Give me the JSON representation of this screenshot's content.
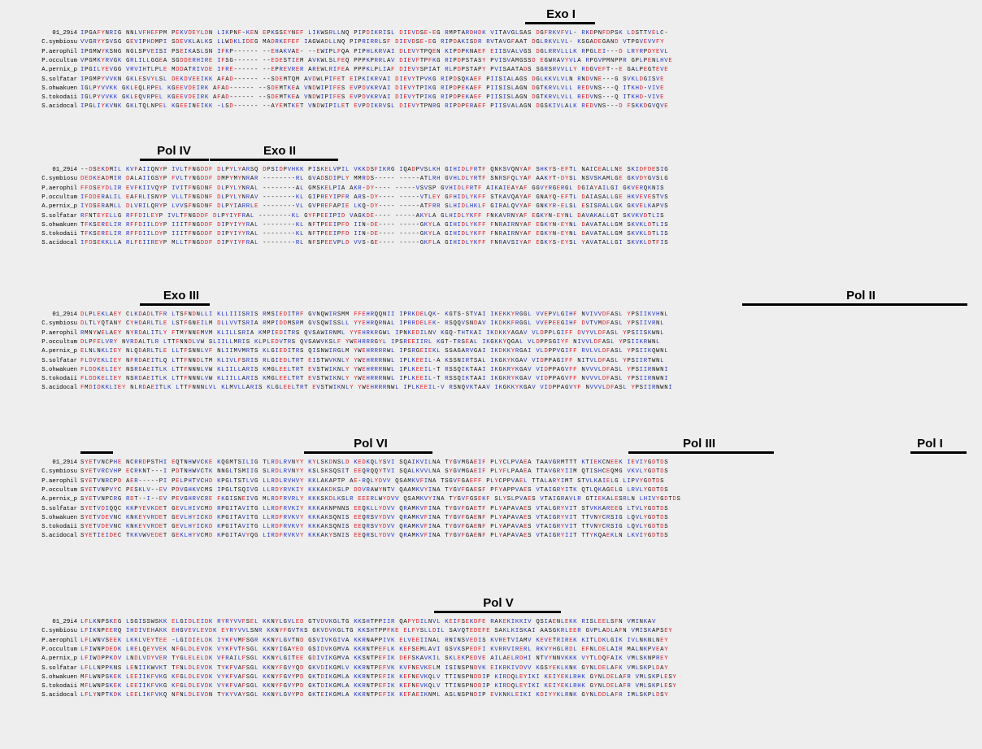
{
  "figure": {
    "blocks": [
      {
        "domains": [
          "Exo I"
        ],
        "rows": [
          {
            "name": "01_29i4",
            "seq": "IPGAFYNRIG NNLVFHEFPM PEKVDEYLDN LIKPNF-KEN EPKSSEYNEF LIKWSRLLNQ PIPDIKRISL DIEVDSE-EG RMPTARDHDK VITAVGLSAS DGFRKVFVL- RKDPNFDPSK LDSTTVELC-"
          },
          {
            "name": "C.symbiosu",
            "seq": "VVGRYYSVSG GEVIPHDMPI SDEVKLALKS LLWDKLIDEG MADRKEFEF IAGWADLLNQ PIPRIRRLSF DIEVDSE-EG RIPDAKISDR RVTAVGFAAT DGLRKVLVL- KSGADEGAND VTPGVEVVFY"
          },
          {
            "name": "P.aerophil",
            "seq": "IPGMWYKSNG NGLSPVEISI PSEIKASLSN IFKP------ --EHAKVAE- --EWIPLFQA PIPHLKRVAI DLEVYTPQEN KIPDPKNAEF EIISVALVGS DGLRRVLLLK RPGLEI---D LRYRPDYEVL"
          },
          {
            "name": "P.occultum",
            "seq": "VPGMKYRVGK GRLILLGGEA SGDDERHIRE IFSG------ --EDESTIEM AVKWLSLFEQ PPPKPRRLAV DIEVFTPFKG RIPDPSTASY PVISVAMGSSD EGWRAVYVLA RPGVPMNPPR GPLPENLHVE"
          },
          {
            "name": "A.pernix_p",
            "seq": "IPGILYEVGG VRVIHTLPLE MDDATRIVDE IFRE------ --EPREVRER AREWLRIFEA PPPKLPLIAF DIEVYSPIAT RLPDPSTAPY PVISAATADS SGRSRVVLLY RDGVEFT--E GALPEGTEVE"
          },
          {
            "name": "S.solfatar",
            "seq": "IPGMPYVVKN GKLESVYLSL DEKDVEEIKK AFAD------ --SDEMTQM AVDWLPIFET EIPKIKRVAI DIEVYTPVKG RIPDSQKAEF PIISIALAGS DGLKKVLVLN RNDVNE---G SVKLDGISVE"
          },
          {
            "name": "S.ohwakuen",
            "seq": "IGLPYVVKK GKLEQLRPEL KGEEVDEIRK AFAD------ --SDEMTKEA VNDWIPIFES EVPDVKRVAI DIEVYTPIKG RIPDPEKAEF PIISISLAGN DGTKRVLVLL REDVNS---Q ITKHD-VIVE"
          },
          {
            "name": "S.tokodaii",
            "seq": "IGLPYVVKK GKLEQVRPEL KGEEVDEIRK AFAD------ --SDEMTKEA VNDWIPIFES EVPDVKRVAI DIEVYTPIKG RIPDPEKAEF PIISISLAGN DGTKRVLVLL REDVNS---Q ITKHD-VIVE"
          },
          {
            "name": "S.acidocal",
            "seq": "IPGLIYKVNK GKLTQLNPEL KGEEINEIKK -LSD------ --AYEMTKET VNDWIPILET EVPDIKRVSL DIEVYTPNRG RIPDPERAEF PIISVALAGN DGSKIVLALK REDVNS---D FSKKDGVQVE"
          }
        ]
      },
      {
        "domains": [
          "Pol IV",
          "Exo II"
        ],
        "rows": [
          {
            "name": "01_29i4",
            "seq": "--DSEKDMIL KVFAIIQNYP IVLTFNGDDF DLPYLYARSQ DPSIDPVHKK PISKELVPIL VKKDSFIKRG IQADPVSLKH GIHIDLFRTF QNKSVQNYAF SHKYS-EFTL NAICEALLNE SKIDFDESIG"
          },
          {
            "name": "C.symbiosu",
            "seq": "DEDKEADMIR DALAIIGSYP FVLTYNGDDF DMPYMYNRAR --------RL GVADSDIPLY MMRDS----- -----ATLRH GVHLDLYRTF SNRSFQLYAF AAKYT-DYSL NSVSKAMLGE GKVDYGVSLG"
          },
          {
            "name": "P.aerophil",
            "seq": "FFDSEYDLIR EVFKIIVQYP IVITFNGDNF DLPYLYNRAL --------AL GMSKELPIA AKR-DY---- -----VSVSP GVHIDLFRTF AIKAIEAYAF GGVYRGERGL DGIAYAILGI GKVERQKNIS"
          },
          {
            "name": "P.occultum",
            "seq": "IFDDERALIL EAFRLISNYP VLLTFNGDNF DLPYLYNRAV --------KL GIPREYIPFR ARS-DY---- -----VTLEY GFHIDLYKFF STKAVQAYAF GNAYQ-EFTL DAIASALLGE HKVEVESTVS"
          },
          {
            "name": "A.pernix_p",
            "seq": "IYDSERAMLL DLVRILQRYP LVVSFNGDNF DLPYIARRLE --------VL GVPREFAPIE LKQ-DY---- -----ATFRR SLHIDLHKLF GIRALQVYAF GNKYR-ELSL ESISRALLGK GKVELKAPVS"
          },
          {
            "name": "S.solfatar",
            "seq": "RFNTEYELLG RFFDILEYP IVLTFNGDDF DLPYIYFRAL --------KL GYFPEEIPID VAGKDE---- -----AKYLA GLHIDLYKFF FNKAVRNYAF EGKYN-EYNL DAVAKALLGT SKVKVDTLIS"
          },
          {
            "name": "S.ohwakuen",
            "seq": "TFKSERELIR RFFDIILDYP IIITFNGDDF DIPYIYYRAL --------KL NFTPEEIPFD IIN-DE---- -----GKYLA GIHIDLYKFF FNRAIRNYAF EGKYN-EYNL DAVATALLGM SKVKLDTLIS"
          },
          {
            "name": "S.tokodaii",
            "seq": "TFKSERELIR RFFDIILDYP IIITFNGDDF DIPYIYYRAL --------KL NFTPEEIPFD IIN-DE---- -----GKYLA GIHIDLYKFF FNRAIRNYAF EGKYN-EYNL DAVATALLGM SKVKLDTLIS"
          },
          {
            "name": "S.acidocal",
            "seq": "IFDSEKKLLA RLFEIIREYP MLLTFNGDDF DIPYIYFRAL --------RL NFSPEEVPLD VVS-GE---- -----GKFLA GIHIDLYKFF FNRAVSIYAF EGKYS-EYSL YAVATALLGI SKVKLDTFIS"
          }
        ]
      },
      {
        "domains": [
          "Exo III",
          "Pol II"
        ],
        "rows": [
          {
            "name": "01_29i4",
            "seq": "DLPLEKLAEY CLKDADLTFR LTSFNDNLLI KLLIIISRIS RMSIEDITRF GVNQWIRSMM FFEHRQQNII IPRKDELQK- KGTS-STVAI IKEKKYRGGL VVEPVLGIHF NVIVVDFASL YPSIIKVHNL"
          },
          {
            "name": "C.symbiosu",
            "seq": "DLTLYQTANY CYHDARLTLE LSTFGNEILM DLLVVTSRIA RMPIDDMSRM GVSQWISSLL YYEHRQRNAL IPRRDELEK- RSQQVSNDAV IKDKKFRGGL VVEPEEGIHF DVTVMDFASL YPSIIVRNL"
          },
          {
            "name": "P.aerophil",
            "seq": "RMNYWELAEY NYRDALITLY FTMYNNEMVM KLILLSRIA KMPIEDITRS QVSAWIRNML YYEHRKRGWL IPNKEDILNV KGQ-THTKAI IKDKKYAGAV VLDPPLGIFF DVYVLDFASL YPSIISKWNL"
          },
          {
            "name": "P.occultum",
            "seq": "DLPFELVRY NVRDALTLR LTTFNNDLVW SLIILLMRIS KLPLEDVTRS QVSAWVKSLF YWEHRRRGYL IPSREEIIRL KGT-TRSEAL IKGKKYQGAL VLDPPSGIYF NIVVLDFASL YPSIIKRWNL"
          },
          {
            "name": "A.pernix_p",
            "seq": "ELNLNKLIEY NLQDARLTLE LLTFSNNLVF NLIIMVMRTS KLGIEDITRS QISNWIRGLM YWEHRRRRWL IPSRGEIEKL SSAGARVGAI IKDKKYRGAI VLDPPVGIFF RVLVLDFASL YPSIIKQWNL"
          },
          {
            "name": "S.solfatar",
            "seq": "FLDVEKLIEY NFRDAEITLQ LTTFNNDLTM KLIVLFSRIS RLGIEDLTRT EISTWVKNLY YWEHRRRNWL IPLKEEIL-A KSSNIRTSAL IKGKYKGAV VIDPPAGIFF NITVLDFASL YPSIIRTWNL"
          },
          {
            "name": "S.ohwakuen",
            "seq": "FLDDKELIEY NSRDAEITLK LTTFNNNLVW KLIILLARIS KMGLEELTRT EVSTWIKNLY YWEHRRRNWL IPLKEEIL-T RSSQIKTAAI IKGKRYKGAV VIDPPAGVFF NVVVLDFASL YPSIIRNWNI"
          },
          {
            "name": "S.tokodaii",
            "seq": "FLDDKELIEY NSRDAEITLK LTTFNNNLVW KLIILLARIS KMGLEELTRT EVSTWIKNLY YWEHRRRNWL IPLKEEIL-T RSSQIKTAAI IKGKRYKGAV VIDPPAGVFF NVVVLDFASL YPSIIRNWNI"
          },
          {
            "name": "S.acidocal",
            "seq": "FMDIDKKLIEY NLRDAEITLK LTTFNNNLVL KLMVLLARIS KLGLEELTRT EVSTWIKNLY YWEHRRRNWL IPLKEEIL-V RSNQVKTAAV IKGKKYKGAV VIDPPAGVYF NVVVLDFASL YPSIIRNWNI"
          }
        ]
      },
      {
        "domains": [
          "Pol VI",
          "Pol III",
          "Pol I"
        ],
        "rows": [
          {
            "name": "01_29i4",
            "seq": "SYETVNCPHE NCRRDPSTHI EQTNHWVCKE KQGMTSILIG TLRDLRVNYY KYLSKDNSLD KEDKQLYSVI SQAIKVILNA TYGVMGAEIF PLYCLPVAEA TAAVGRMTTT KTIEKCNEEK IEVIYGDTDS"
          },
          {
            "name": "C.symbiosu",
            "seq": "SYETVRCVHP ECRKNT---I PDTNHWVCTK NNGLTSMIIG SLRDLRVNYY KSLSKSQSIT EEQRQQYTVI SQALKVVLNA SYGVMGAEIF PLYFLPAAEA TTAVGRYIIM QTISHCEQMG VKVLYGDTDS"
          },
          {
            "name": "P.aerophil",
            "seq": "SYETVNRCPD AER-----PI PELPHTVCHD KPGLTSTLVG LLRDLRVHVY KKLAKAPTP AE-RQLYDVV QSAMKVFINA TSGVFGAEFF PLYCPPVAEL TTALARYIMT STVLKAIELG LIPVYGDTDS"
          },
          {
            "name": "P.occultum",
            "seq": "SYETVNPVYC PESKLV--EV PDVGHKVCMS IPGLTSQIVG LLRDYRVKIY KKKAKDKSLP DDVRAWYNTV QAAMKVYINA TYGVFGAESF PFYAPPVAES VTAIGRYITK QTLQKAGELG LRVLYGDTDS"
          },
          {
            "name": "A.pernix_p",
            "seq": "SYETVNPCRG RDT--I--EV PEVGHRVCRE FKGISNEIVG MLRDFRVRLY KKKSKDLKSLR EEERLWYDVV QSAMKVYINA TYGVFGSEKF SLYSLPVAES VTAIGRAVLR GTIEKALESRLN LHIVYGDTDS"
          },
          {
            "name": "S.solfatar",
            "seq": "SYETVDIQQC KKPYEVKDET GEVLHIVCMD RPGITAVITG LLRDFRVKIY KKKAKNPNNS EEQKLLYDVV QRAMKVFINA TYGVFGAETF PLYAPAVAES VTALGRYVIT STVKKAREEG LTVLYGDTDS"
          },
          {
            "name": "S.ohwakuen",
            "seq": "SYETVDEVNC KNKEYVRDET GEVLHYICKD KPGITAVITG LLRDFRVKVY KKKAKSQNIS EEQRSVYDVV QRAMKVFINA TYGVFGAENF PLYAPAVAES VTAIGRYVIT TTVNYCRSIG LQVLYGDTDS"
          },
          {
            "name": "S.tokodaii",
            "seq": "SYETVDEVNC KNKEYVRDET GEVLHYICKD KPGITAVITG LLRDFRVKVY KKKAKSQNIS EEQRSVYDVV QRAMKVFINA TYGVFGAENF PLYAPAVAES VTAIGRYVIT TTVNYCRSIG LQVLYGDTDS"
          },
          {
            "name": "S.acidocal",
            "seq": "SYETIEIDEC TKKVWVEDET GEKLHYVCMD KPGITAVYQG LIRDFRVKVY KKKAKYSNIS EEQRSLYDVV QRAMKVFINA TYGVFGAENF PLYAPAVAES VTAIGRYIIT TTYKQAEKLN LKVIYGDTDS"
          }
        ]
      },
      {
        "domains": [
          "Pol V"
        ],
        "rows": [
          {
            "name": "01_29i4",
            "seq": "LFLKNPSKEG LSGISSWSKK ELGIDLEIDK RYRYVVFSEL KKNYLGVLED GTVDVKGLTG KKSHTPPIIR QAFYDILNVL KEIFSEKDFE RAKEKIKKIV QSIAENLEKK RISLEELSFN VMINKAV"
          },
          {
            "name": "C.symbiosu",
            "seq": "LFIKNPEERQ IHDIVEHAKK EHGVEVLEVDK EYRYVVLSNR KKNYFGVTKS GKVDVKGLTG KKSHTPPFKE ELFYSLLDIL SAVQTEDEFE SAKLKISKAI AASGKRLEER GVPLADLAFN VMISKAPSEY"
          },
          {
            "name": "P.aerophil",
            "seq": "LFLWNVSEEK LKKLVEYTEE -LGIDIELDK IYKFVMFSGR KKNYLGVTND GSVIVKGIVA KKRNAPPIVK ELVEEIINAL RNINSVEDIS KVRETVIAMV KEVETRIREK KITLDKLGIK IVLNKNLNEY"
          },
          {
            "name": "P.occultum",
            "seq": "LFIWNPDEDK LRELQEYVEK NFGLDLEVDK VYKFVTFSGL KKNYIGAYED GSIDVKGMVA KKRNTPEFLK KEFSEMLAVI GSVKSPEDFI KVRRVIRERL RKVYHGLRDL EFNLDELAIR MALNKPVEAY"
          },
          {
            "name": "A.pernix_p",
            "seq": "LFIWDPPKDV LNDLVDYVER TYGLELELDK VFRAILFSGL KKNYLGITEE GDIVIKGMVA KKSNTPEFIK DEFSKAVKIL SKLEKPEDVE AILAELRDHI NTVYNNVKKK VYTLDQFAIK VMLSKNPREY"
          },
          {
            "name": "S.solfatar",
            "seq": "LFLLNPPKNS LENIIKWVKT TFNLDLEVDK TYKFVAFSGL KKNYFGVYQD GKVDIKGMLV KKRNTPEFVK KVFNEVKELM ISINSPNDVK EIKRKIVDVV KGSYEKLKNK GYNLDELAFK VMLSKPLDAY"
          },
          {
            "name": "S.ohwakuen",
            "seq": "MFLWNPSKEK LEEIIKFVKG KFGLDLEVDK VYKFVAFSGL KKNYFGVYPD GKTDIKGMLA KKRNTPEFIK KEFNEVKQLV TTINSPNDDIP KIRDQLEYIKI KEIYEKLRHK GYNLDELAFR VMLSKPLESY"
          },
          {
            "name": "S.tokodaii",
            "seq": "MFLWNPSKEK LEEIIKFVKG KFGLDLEVDK VYKFVAFSGL KKNYFGVYPD GKTDIKGMLA KKRNTPEFIK KEFNEVKQLV TTINSPNDDIP KIRDQLEYIKI KEIYEKLRHK GYNLDELAFR VMLSKPLESY"
          },
          {
            "name": "S.acidocal",
            "seq": "LFLYNPTKDK LEELIKFVKQ NFNLDLEVDN TYKYVAYSGL KKNYLGVYPD GKTEIKGMLA KKRNTPEFIK KEFAEIKNML ASLNSPNDIP EVKNKLEIKI KDIYYKLRNK GYNLDDLAFR IMLSKPLDSY"
          }
        ]
      }
    ]
  }
}
